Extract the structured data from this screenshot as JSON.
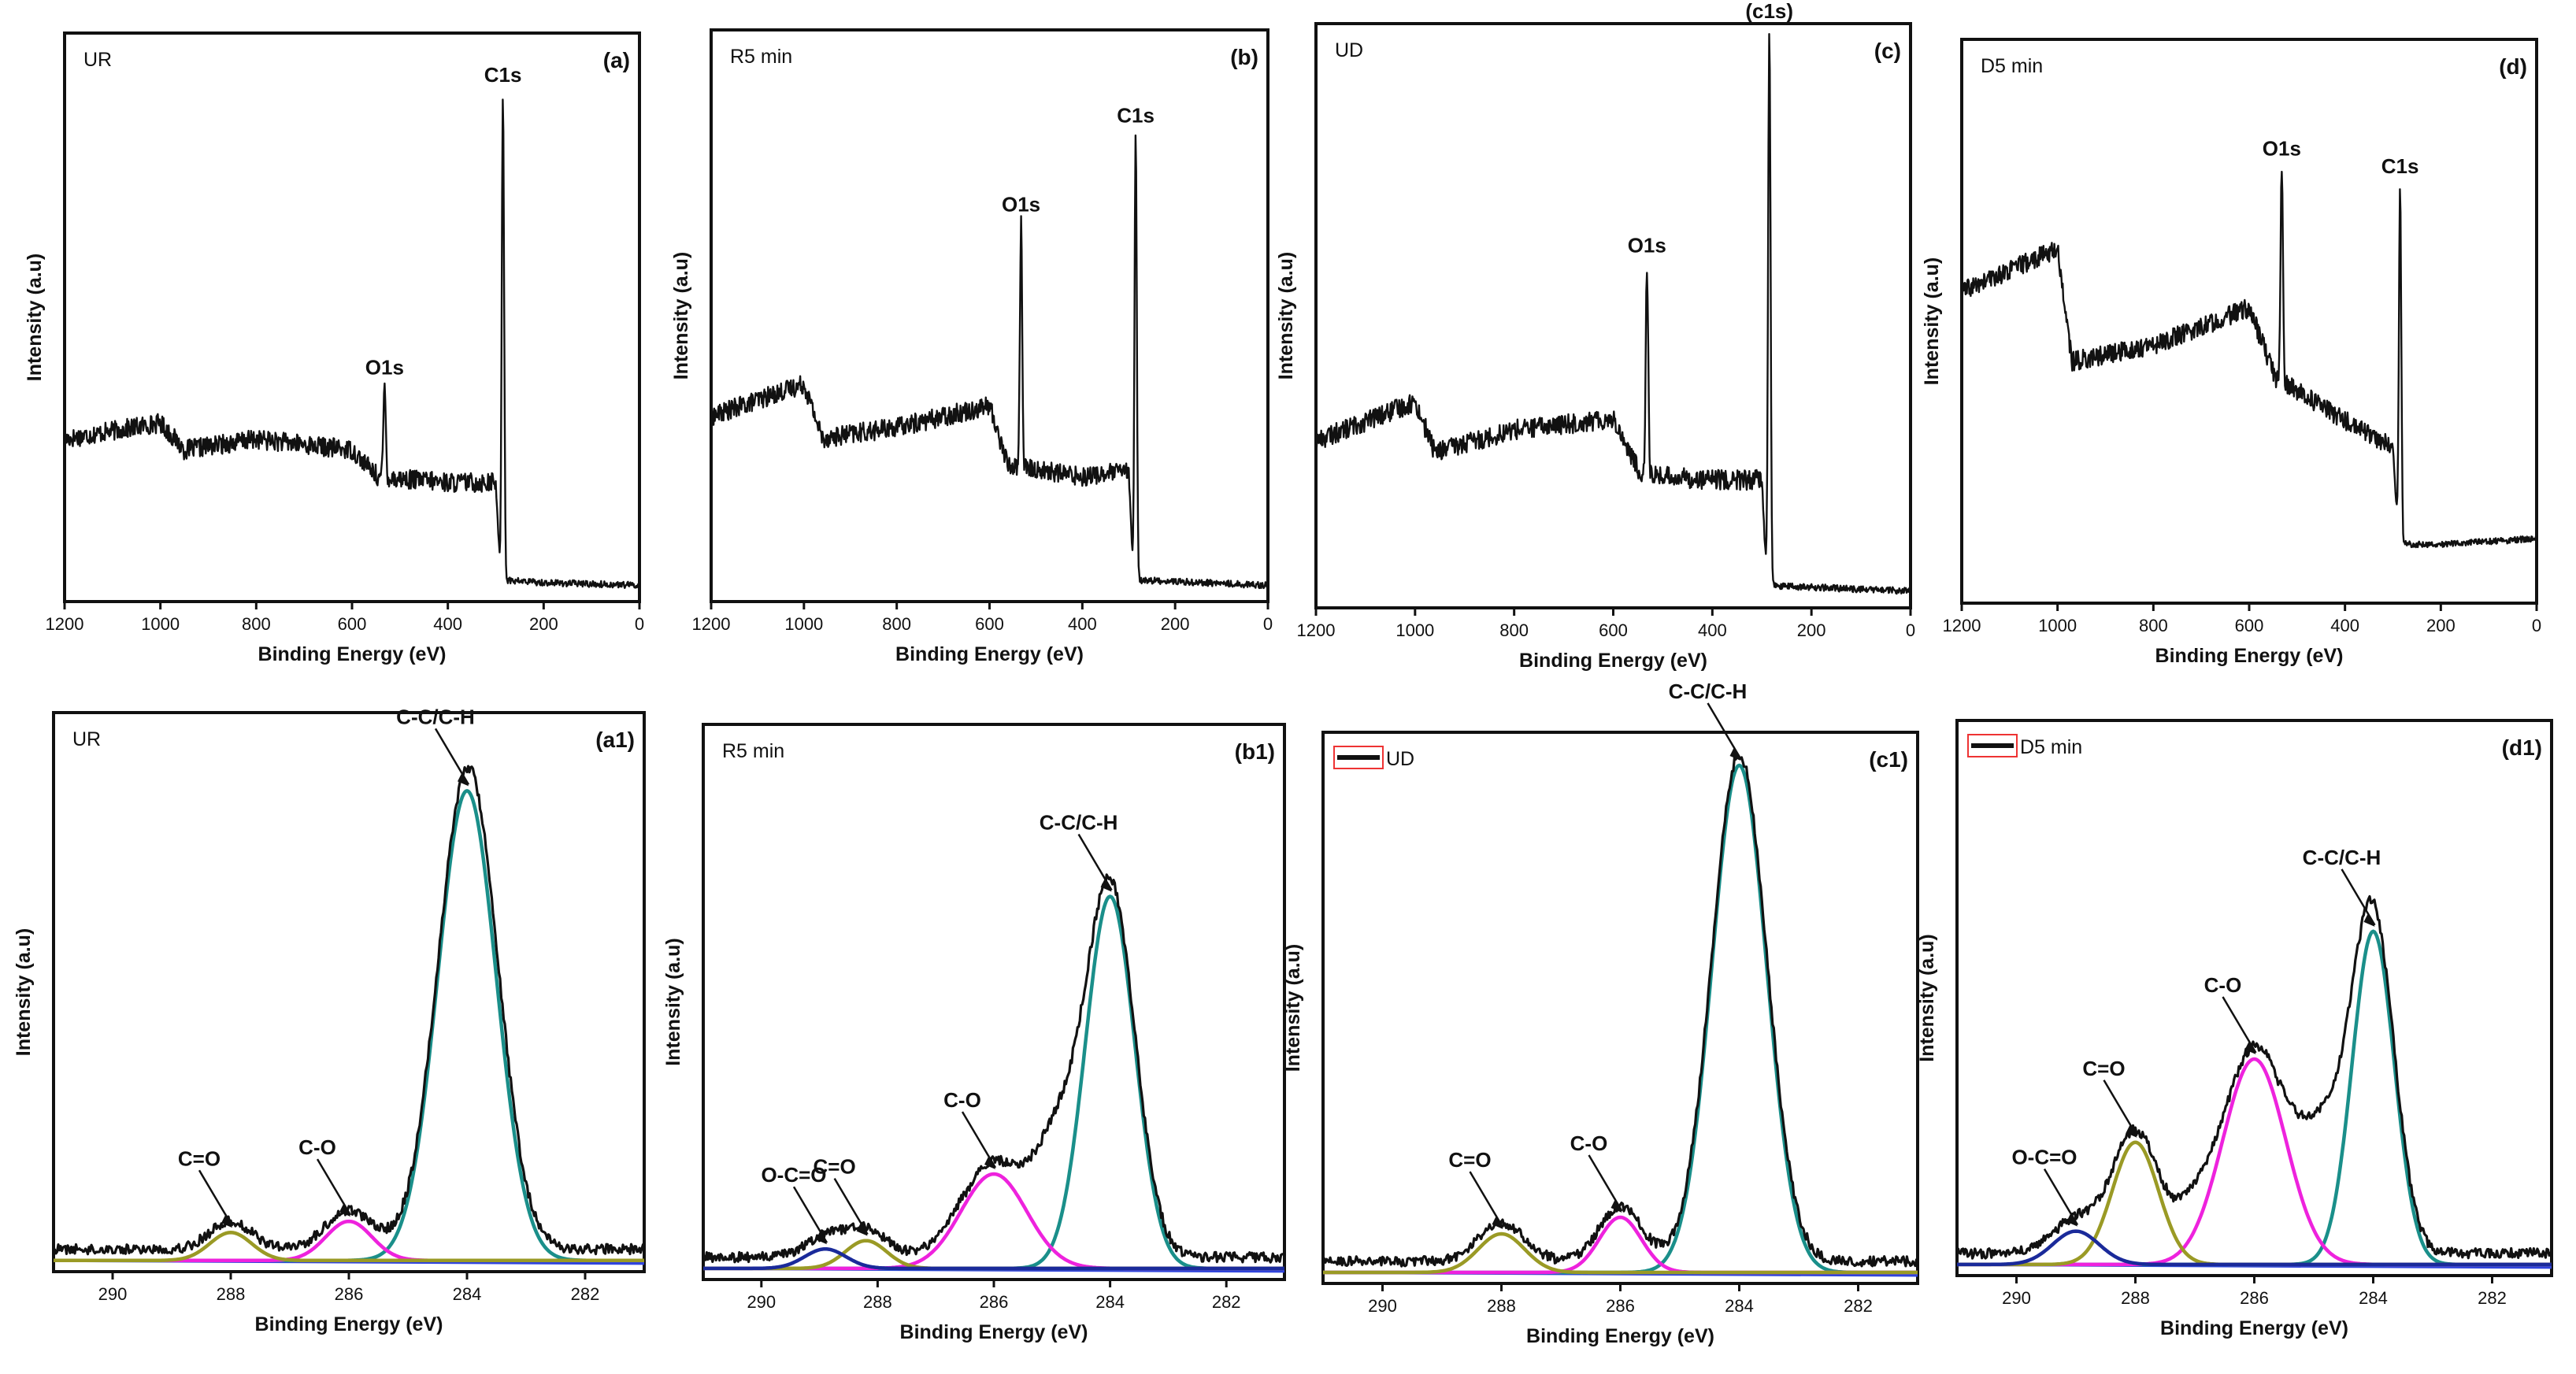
{
  "figure": {
    "description": "XPS survey and C1s high-resolution spectra"
  },
  "colors": {
    "frame": "#111111",
    "envelope": "#111111",
    "CC": "#1a8f8a",
    "CO": "#ee22dd",
    "CdO": "#9a9a25",
    "OCdO": "#1a2a9a",
    "base": "#3044dd",
    "legendBox": "#ee3333"
  },
  "chart_data": [
    {
      "id": "a",
      "type": "line",
      "tag": "(a)",
      "title": "UR",
      "xlabel": "Binding Energy (eV)",
      "ylabel": "Intensity (a.u)",
      "xlim": [
        1200,
        0
      ],
      "xticks": [
        1200,
        1000,
        800,
        600,
        400,
        200,
        0
      ],
      "ylim": [
        0,
        1.05
      ],
      "grid": false,
      "series": [
        {
          "name": "UR survey",
          "baseline": [
            [
              1200,
              0.3
            ],
            [
              1000,
              0.33
            ],
            [
              950,
              0.28
            ],
            [
              800,
              0.3
            ],
            [
              600,
              0.28
            ],
            [
              545,
              0.23
            ],
            [
              400,
              0.22
            ],
            [
              300,
              0.22
            ],
            [
              290,
              0.04
            ],
            [
              200,
              0.035
            ],
            [
              0,
              0.03
            ]
          ],
          "peaks": [
            [
              532,
              0.17
            ],
            [
              285,
              0.9
            ]
          ]
        }
      ],
      "annotations": [
        {
          "text": "O1s",
          "x": 532
        },
        {
          "text": "C1s",
          "x": 285
        }
      ]
    },
    {
      "id": "b",
      "type": "line",
      "tag": "(b)",
      "title": "R5 min",
      "xlabel": "Binding Energy (eV)",
      "ylabel": "Intensity (a.u)",
      "xlim": [
        1200,
        0
      ],
      "xticks": [
        1200,
        1000,
        800,
        600,
        400,
        200,
        0
      ],
      "ylim": [
        0,
        1.05
      ],
      "grid": false,
      "series": [
        {
          "name": "R5 min survey",
          "baseline": [
            [
              1200,
              0.34
            ],
            [
              1000,
              0.4
            ],
            [
              960,
              0.3
            ],
            [
              800,
              0.32
            ],
            [
              600,
              0.36
            ],
            [
              560,
              0.25
            ],
            [
              400,
              0.23
            ],
            [
              300,
              0.24
            ],
            [
              290,
              0.04
            ],
            [
              0,
              0.03
            ]
          ],
          "peaks": [
            [
              532,
              0.45
            ],
            [
              285,
              0.82
            ]
          ]
        }
      ],
      "annotations": [
        {
          "text": "O1s",
          "x": 532
        },
        {
          "text": "C1s",
          "x": 285
        }
      ]
    },
    {
      "id": "c",
      "type": "line",
      "tag": "(c)",
      "title": "UD",
      "xlabel": "Binding Energy (eV)",
      "ylabel": "Intensity (a.u)",
      "xlim": [
        1200,
        0
      ],
      "xticks": [
        1200,
        1000,
        800,
        600,
        400,
        200,
        0
      ],
      "ylim": [
        0,
        1.05
      ],
      "grid": false,
      "series": [
        {
          "name": "UD survey",
          "baseline": [
            [
              1200,
              0.3
            ],
            [
              1000,
              0.37
            ],
            [
              960,
              0.28
            ],
            [
              800,
              0.32
            ],
            [
              600,
              0.34
            ],
            [
              545,
              0.24
            ],
            [
              400,
              0.23
            ],
            [
              300,
              0.23
            ],
            [
              290,
              0.04
            ],
            [
              0,
              0.03
            ]
          ],
          "peaks": [
            [
              532,
              0.38
            ],
            [
              285,
              1.0
            ]
          ]
        }
      ],
      "annotations": [
        {
          "text": "O1s",
          "x": 532
        },
        {
          "text": "(c1s)",
          "x": 285
        }
      ]
    },
    {
      "id": "d",
      "type": "line",
      "tag": "(d)",
      "title": "D5 min",
      "xlabel": "Binding Energy (eV)",
      "ylabel": "Intensity (a.u)",
      "xlim": [
        1200,
        0
      ],
      "xticks": [
        1200,
        1000,
        800,
        600,
        400,
        200,
        0
      ],
      "ylim": [
        0,
        1.05
      ],
      "grid": false,
      "series": [
        {
          "name": "D5 min survey",
          "baseline": [
            [
              1200,
              0.58
            ],
            [
              1000,
              0.66
            ],
            [
              970,
              0.45
            ],
            [
              800,
              0.48
            ],
            [
              600,
              0.55
            ],
            [
              545,
              0.42
            ],
            [
              400,
              0.34
            ],
            [
              300,
              0.29
            ],
            [
              288,
              0.11
            ],
            [
              200,
              0.11
            ],
            [
              0,
              0.12
            ]
          ],
          "peaks": [
            [
              532,
              0.4
            ],
            [
              285,
              0.67
            ]
          ]
        }
      ],
      "annotations": [
        {
          "text": "O1s",
          "x": 532
        },
        {
          "text": "C1s",
          "x": 285
        }
      ]
    },
    {
      "id": "a1",
      "type": "line",
      "tag": "(a1)",
      "title": "UR",
      "legend": false,
      "xlabel": "Binding Energy (eV)",
      "ylabel": "Intensity (a.u)",
      "xlim": [
        291,
        281
      ],
      "xticks": [
        290,
        288,
        286,
        284,
        282
      ],
      "ylim": [
        0,
        1.0
      ],
      "grid": false,
      "series": [
        {
          "name": "C-C/C-H",
          "center": 284.0,
          "amplitude": 0.84,
          "width": 0.7,
          "color": "CC"
        },
        {
          "name": "C-O",
          "center": 286.0,
          "amplitude": 0.07,
          "width": 0.55,
          "color": "CO"
        },
        {
          "name": "C=O",
          "center": 288.0,
          "amplitude": 0.05,
          "width": 0.5,
          "color": "CdO"
        },
        {
          "name": "envelope",
          "color": "envelope",
          "offset": 0.02,
          "extra": [
            [
              283.6,
              0.04,
              0.5
            ]
          ]
        }
      ],
      "annotations": [
        {
          "text": "C-C/C-H",
          "x": 284.0
        },
        {
          "text": "C-O",
          "x": 286.0
        },
        {
          "text": "C=O",
          "x": 288.0
        }
      ]
    },
    {
      "id": "b1",
      "type": "line",
      "tag": "(b1)",
      "title": "R5 min",
      "legend": false,
      "xlabel": "Binding Energy (eV)",
      "ylabel": "Intensity (a.u)",
      "xlim": [
        291,
        281
      ],
      "xticks": [
        290,
        288,
        286,
        284,
        282
      ],
      "ylim": [
        0,
        1.0
      ],
      "grid": false,
      "series": [
        {
          "name": "C-C/C-H",
          "center": 284.0,
          "amplitude": 0.67,
          "width": 0.6,
          "color": "CC"
        },
        {
          "name": "C-O",
          "center": 286.0,
          "amplitude": 0.17,
          "width": 0.8,
          "color": "CO"
        },
        {
          "name": "C=O",
          "center": 288.2,
          "amplitude": 0.05,
          "width": 0.5,
          "color": "CdO"
        },
        {
          "name": "O-C=O",
          "center": 288.9,
          "amplitude": 0.035,
          "width": 0.5,
          "color": "OCdO"
        },
        {
          "name": "envelope",
          "color": "envelope",
          "offset": 0.02,
          "extra": [
            [
              284.9,
              0.18,
              0.55
            ]
          ]
        }
      ],
      "annotations": [
        {
          "text": "C-C/C-H",
          "x": 284.0
        },
        {
          "text": "C-O",
          "x": 286.0
        },
        {
          "text": "C=O",
          "x": 288.2
        },
        {
          "text": "O-C=O",
          "x": 288.9
        }
      ]
    },
    {
      "id": "c1",
      "type": "line",
      "tag": "(c1)",
      "title": "UD",
      "legend": true,
      "xlabel": "Binding Energy (eV)",
      "ylabel": "Intensity (a.u)",
      "xlim": [
        291,
        281
      ],
      "xticks": [
        290,
        288,
        286,
        284,
        282
      ],
      "ylim": [
        0,
        1.0
      ],
      "grid": false,
      "series": [
        {
          "name": "C-C/C-H",
          "center": 284.0,
          "amplitude": 0.92,
          "width": 0.65,
          "color": "CC"
        },
        {
          "name": "C-O",
          "center": 286.0,
          "amplitude": 0.1,
          "width": 0.5,
          "color": "CO"
        },
        {
          "name": "C=O",
          "center": 288.0,
          "amplitude": 0.07,
          "width": 0.55,
          "color": "CdO"
        },
        {
          "name": "envelope",
          "color": "envelope",
          "offset": 0.02,
          "extra": []
        }
      ],
      "annotations": [
        {
          "text": "C-C/C-H",
          "x": 284.0
        },
        {
          "text": "C-O",
          "x": 286.0
        },
        {
          "text": "C=O",
          "x": 288.0
        }
      ]
    },
    {
      "id": "d1",
      "type": "line",
      "tag": "(d1)",
      "title": "D5 min",
      "legend": true,
      "xlabel": "Binding Energy (eV)",
      "ylabel": "Intensity (a.u)",
      "xlim": [
        291,
        281
      ],
      "xticks": [
        290,
        288,
        286,
        284,
        282
      ],
      "ylim": [
        0,
        1.0
      ],
      "grid": false,
      "series": [
        {
          "name": "C-C/C-H",
          "center": 284.0,
          "amplitude": 0.6,
          "width": 0.5,
          "color": "CC"
        },
        {
          "name": "C-O",
          "center": 286.0,
          "amplitude": 0.37,
          "width": 0.75,
          "color": "CO"
        },
        {
          "name": "C=O",
          "center": 288.0,
          "amplitude": 0.22,
          "width": 0.55,
          "color": "CdO"
        },
        {
          "name": "O-C=O",
          "center": 289.0,
          "amplitude": 0.06,
          "width": 0.55,
          "color": "OCdO"
        },
        {
          "name": "envelope",
          "color": "envelope",
          "offset": 0.02,
          "extra": [
            [
              284.8,
              0.2,
              0.6
            ],
            [
              287.0,
              0.06,
              0.45
            ]
          ]
        }
      ],
      "annotations": [
        {
          "text": "C-C/C-H",
          "x": 284.0
        },
        {
          "text": "C-O",
          "x": 286.0
        },
        {
          "text": "C=O",
          "x": 288.0
        },
        {
          "text": "O-C=O",
          "x": 289.0
        }
      ]
    }
  ]
}
